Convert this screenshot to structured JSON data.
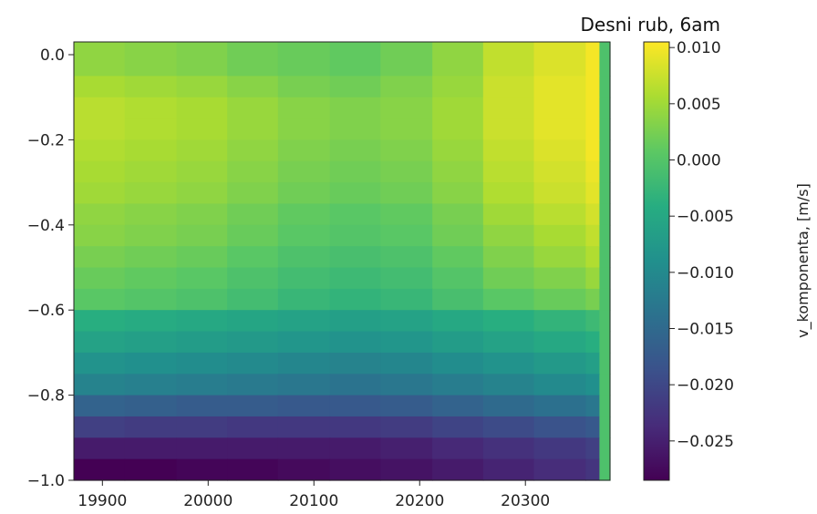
{
  "chart_data": {
    "type": "heatmap",
    "title": "Desni rub, 6am",
    "xlabel": "",
    "ylabel": "",
    "colorbar_label": "v_komponenta, [m/s]",
    "colormap": "viridis",
    "x_range": [
      19873,
      20380
    ],
    "y_range": [
      -1.0,
      0.03
    ],
    "x_ticks": [
      19900,
      20000,
      20100,
      20200,
      20300
    ],
    "x_tick_labels": [
      "19900",
      "20000",
      "20100",
      "20200",
      "20300"
    ],
    "y_ticks": [
      0.0,
      -0.2,
      -0.4,
      -0.6,
      -0.8,
      -1.0
    ],
    "y_tick_labels": [
      "0.0",
      "−0.2",
      "−0.4",
      "−0.6",
      "−0.8",
      "−1.0"
    ],
    "colorbar_range": [
      -0.0285,
      0.0105
    ],
    "colorbar_ticks": [
      0.01,
      0.005,
      0.0,
      -0.005,
      -0.01,
      -0.015,
      -0.02,
      -0.025
    ],
    "colorbar_tick_labels": [
      "0.010",
      "0.005",
      "0.000",
      "−0.005",
      "−0.010",
      "−0.015",
      "−0.020",
      "−0.025"
    ],
    "grid": false,
    "x_columns": [
      19873,
      19921,
      19970,
      20018,
      20066,
      20115,
      20163,
      20212,
      20260,
      20308,
      20357,
      20370
    ],
    "x_edge_right": 20380,
    "y_rows": [
      0.03,
      -0.05,
      -0.1,
      -0.15,
      -0.2,
      -0.25,
      -0.3,
      -0.35,
      -0.4,
      -0.45,
      -0.5,
      -0.55,
      -0.6,
      -0.65,
      -0.7,
      -0.75,
      -0.8,
      -0.85,
      -0.9,
      -0.95
    ],
    "y_edge_bottom": -1.0,
    "values": [
      [
        0.004,
        0.0035,
        0.003,
        0.002,
        0.0015,
        0.001,
        0.002,
        0.004,
        0.007,
        0.0085,
        0.01,
        -0.0005
      ],
      [
        0.0055,
        0.005,
        0.0045,
        0.0035,
        0.0025,
        0.002,
        0.003,
        0.0045,
        0.0075,
        0.009,
        0.01,
        -0.0005
      ],
      [
        0.0065,
        0.006,
        0.0055,
        0.0045,
        0.0035,
        0.003,
        0.0035,
        0.005,
        0.0075,
        0.009,
        0.01,
        -0.0005
      ],
      [
        0.0065,
        0.006,
        0.0055,
        0.0045,
        0.0035,
        0.003,
        0.0035,
        0.005,
        0.0075,
        0.009,
        0.01,
        -0.0005
      ],
      [
        0.006,
        0.0055,
        0.005,
        0.004,
        0.003,
        0.0025,
        0.003,
        0.0045,
        0.007,
        0.0085,
        0.01,
        -0.0005
      ],
      [
        0.0055,
        0.005,
        0.0045,
        0.0035,
        0.0025,
        0.002,
        0.0025,
        0.004,
        0.0065,
        0.008,
        0.0095,
        -0.0005
      ],
      [
        0.005,
        0.0045,
        0.004,
        0.003,
        0.002,
        0.0015,
        0.002,
        0.0035,
        0.006,
        0.0075,
        0.009,
        -0.0005
      ],
      [
        0.004,
        0.0035,
        0.003,
        0.002,
        0.001,
        0.0005,
        0.001,
        0.0025,
        0.005,
        0.0065,
        0.008,
        -0.0005
      ],
      [
        0.0035,
        0.003,
        0.0025,
        0.0015,
        0.0005,
        0.0,
        0.0005,
        0.002,
        0.004,
        0.0055,
        0.007,
        -0.0005
      ],
      [
        0.0025,
        0.002,
        0.0015,
        0.0005,
        -0.0005,
        -0.001,
        -0.0005,
        0.001,
        0.003,
        0.0045,
        0.006,
        -0.0005
      ],
      [
        0.0015,
        0.001,
        0.0005,
        -0.0005,
        -0.0015,
        -0.002,
        -0.0015,
        0.0,
        0.002,
        0.003,
        0.0045,
        -0.0005
      ],
      [
        0.0005,
        0.0,
        -0.0005,
        -0.0015,
        -0.0025,
        -0.003,
        -0.0025,
        -0.001,
        0.0005,
        0.0015,
        0.0025,
        -0.0005
      ],
      [
        -0.004,
        -0.0045,
        -0.005,
        -0.0055,
        -0.006,
        -0.0065,
        -0.006,
        -0.005,
        -0.004,
        -0.003,
        -0.002,
        -0.0005
      ],
      [
        -0.006,
        -0.0065,
        -0.007,
        -0.0075,
        -0.008,
        -0.0085,
        -0.008,
        -0.007,
        -0.006,
        -0.005,
        -0.004,
        -0.0005
      ],
      [
        -0.0085,
        -0.009,
        -0.0095,
        -0.01,
        -0.0105,
        -0.011,
        -0.0105,
        -0.0095,
        -0.0085,
        -0.0075,
        -0.0065,
        -0.0005
      ],
      [
        -0.011,
        -0.0115,
        -0.012,
        -0.0125,
        -0.013,
        -0.0135,
        -0.013,
        -0.012,
        -0.011,
        -0.01,
        -0.009,
        -0.0005
      ],
      [
        -0.016,
        -0.0165,
        -0.017,
        -0.017,
        -0.0175,
        -0.0175,
        -0.017,
        -0.016,
        -0.015,
        -0.014,
        -0.013,
        -0.0005
      ],
      [
        -0.021,
        -0.0215,
        -0.0215,
        -0.022,
        -0.022,
        -0.022,
        -0.0215,
        -0.0205,
        -0.0195,
        -0.0185,
        -0.0175,
        -0.0005
      ],
      [
        -0.0255,
        -0.0255,
        -0.0255,
        -0.0255,
        -0.0255,
        -0.0255,
        -0.025,
        -0.024,
        -0.023,
        -0.022,
        -0.021,
        -0.0005
      ],
      [
        -0.0285,
        -0.0285,
        -0.028,
        -0.028,
        -0.0275,
        -0.027,
        -0.0265,
        -0.0255,
        -0.0245,
        -0.0235,
        -0.0225,
        -0.0005
      ]
    ]
  }
}
